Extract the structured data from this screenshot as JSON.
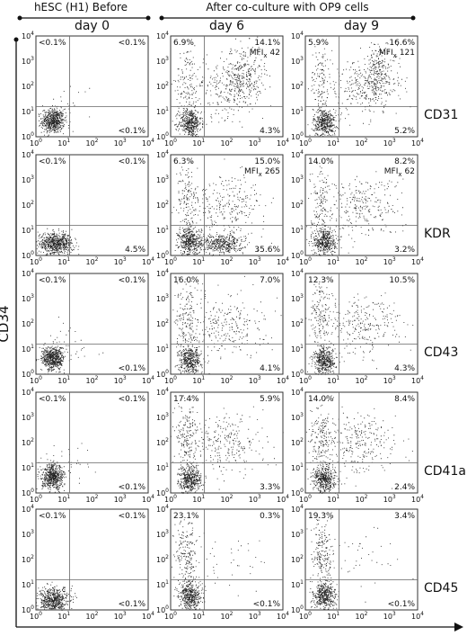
{
  "header": {
    "left": "hESC (H1) Before",
    "right": "After co-culture with OP9 cells"
  },
  "columns": [
    "day 0",
    "day 6",
    "day 9"
  ],
  "y_axis_label": "CD34",
  "ticks": [
    {
      "base": "10",
      "exp": "0"
    },
    {
      "base": "10",
      "exp": "1"
    },
    {
      "base": "10",
      "exp": "2"
    },
    {
      "base": "10",
      "exp": "3"
    },
    {
      "base": "10",
      "exp": "4"
    }
  ],
  "rows": [
    {
      "marker": "CD31",
      "panels": [
        {
          "ul": "<0.1%",
          "ur": "<0.1%",
          "lr": "<0.1%"
        },
        {
          "ul": "6.9%",
          "ur": "14.1%",
          "mfi": {
            "label": "MFI",
            "sub": "x",
            "value": "42"
          },
          "lr": "4.3%"
        },
        {
          "ul": "5.9%",
          "ur": "16.6%",
          "mfi": {
            "label": "MFI",
            "sub": "x",
            "value": "121"
          },
          "lr": "5.2%"
        }
      ]
    },
    {
      "marker": "KDR",
      "panels": [
        {
          "ul": "<0.1%",
          "ur": "<0.1%",
          "lr": "4.5%"
        },
        {
          "ul": "6.3%",
          "ur": "15.0%",
          "mfi": {
            "label": "MFI",
            "sub": "x",
            "value": "265"
          },
          "lr": "35.6%"
        },
        {
          "ul": "14.0%",
          "ur": "8.2%",
          "mfi": {
            "label": "MFI",
            "sub": "x",
            "value": "62"
          },
          "lr": "3.2%"
        }
      ]
    },
    {
      "marker": "CD43",
      "panels": [
        {
          "ul": "<0.1%",
          "ur": "<0.1%",
          "lr": "<0.1%"
        },
        {
          "ul": "16.0%",
          "ur": "7.0%",
          "lr": "4.1%"
        },
        {
          "ul": "12.3%",
          "ur": "10.5%",
          "lr": "4.3%"
        }
      ]
    },
    {
      "marker": "CD41a",
      "panels": [
        {
          "ul": "<0.1%",
          "ur": "<0.1%",
          "lr": "<0.1%"
        },
        {
          "ul": "17.4%",
          "ur": "5.9%",
          "lr": "3.3%"
        },
        {
          "ul": "14.0%",
          "ur": "8.4%",
          "lr": "2.4%"
        }
      ]
    },
    {
      "marker": "CD45",
      "panels": [
        {
          "ul": "<0.1%",
          "ur": "<0.1%",
          "lr": "<0.1%"
        },
        {
          "ul": "23.1%",
          "ur": "0.3%",
          "lr": "<0.1%"
        },
        {
          "ul": "19.3%",
          "ur": "3.4%",
          "lr": "<0.1%"
        }
      ]
    }
  ]
}
